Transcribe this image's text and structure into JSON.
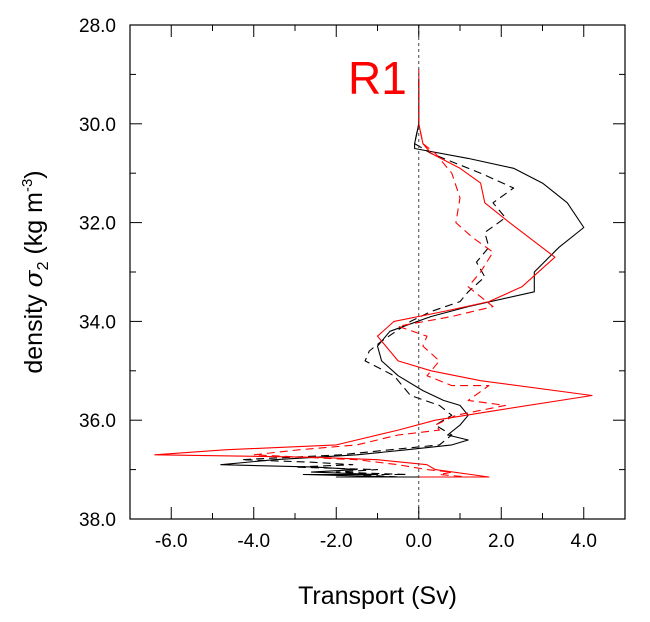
{
  "chart_data": {
    "type": "line",
    "title": "",
    "annotation": "R1",
    "xlabel": "Transport (Sv)",
    "ylabel_prefix": "density ",
    "ylabel_symbol": "σ",
    "ylabel_subscript": "2",
    "ylabel_units_pre": " (kg m",
    "ylabel_units_sup": "-3",
    "ylabel_units_post": ")",
    "xlim": [
      -7.0,
      5.0
    ],
    "ylim": [
      38.0,
      28.0
    ],
    "y_inverted": true,
    "grid": false,
    "zero_line": {
      "x": 0.0,
      "style": "dashed"
    },
    "x_ticks": [
      -6.0,
      -4.0,
      -2.0,
      0.0,
      2.0,
      4.0
    ],
    "x_tick_labels": [
      "-6.0",
      "-4.0",
      "-2.0",
      "0.0",
      "2.0",
      "4.0"
    ],
    "y_ticks": [
      28.0,
      30.0,
      32.0,
      34.0,
      36.0,
      38.0
    ],
    "y_tick_labels": [
      "28.0",
      "30.0",
      "32.0",
      "34.0",
      "36.0",
      "38.0"
    ],
    "series": [
      {
        "color": "#000000",
        "dash": "solid",
        "points": [
          [
            0.0,
            29.1
          ],
          [
            0.0,
            30.0
          ],
          [
            -0.1,
            30.4
          ],
          [
            -0.1,
            30.5
          ],
          [
            1.2,
            30.7
          ],
          [
            2.3,
            30.9
          ],
          [
            3.0,
            31.2
          ],
          [
            3.6,
            31.6
          ],
          [
            4.0,
            32.1
          ],
          [
            3.4,
            32.5
          ],
          [
            2.8,
            33.0
          ],
          [
            2.8,
            33.4
          ],
          [
            1.2,
            33.7
          ],
          [
            0.3,
            33.9
          ],
          [
            -0.7,
            34.2
          ],
          [
            -1.0,
            34.5
          ],
          [
            -0.9,
            34.8
          ],
          [
            -0.5,
            35.1
          ],
          [
            0.1,
            35.4
          ],
          [
            0.6,
            35.6
          ],
          [
            1.0,
            35.7
          ],
          [
            1.2,
            35.9
          ],
          [
            1.0,
            36.1
          ],
          [
            0.7,
            36.3
          ],
          [
            1.2,
            36.4
          ],
          [
            0.8,
            36.5
          ],
          [
            -0.3,
            36.6
          ],
          [
            -1.5,
            36.7
          ],
          [
            -3.5,
            36.8
          ],
          [
            -4.8,
            36.9
          ],
          [
            -2.5,
            36.95
          ],
          [
            -1.5,
            37.0
          ],
          [
            -2.6,
            37.05
          ],
          [
            -1.0,
            37.1
          ],
          [
            -2.8,
            37.1
          ],
          [
            -0.5,
            37.15
          ],
          [
            -2.0,
            37.15
          ],
          [
            0.0,
            37.15
          ]
        ]
      },
      {
        "color": "#000000",
        "dash": "dashed",
        "points": [
          [
            0.0,
            29.1
          ],
          [
            0.0,
            30.0
          ],
          [
            -0.1,
            30.4
          ],
          [
            0.3,
            30.6
          ],
          [
            1.5,
            31.0
          ],
          [
            2.3,
            31.3
          ],
          [
            1.8,
            31.6
          ],
          [
            2.1,
            31.9
          ],
          [
            1.6,
            32.2
          ],
          [
            1.7,
            32.5
          ],
          [
            1.4,
            32.8
          ],
          [
            1.6,
            33.1
          ],
          [
            1.2,
            33.4
          ],
          [
            1.0,
            33.6
          ],
          [
            0.3,
            33.8
          ],
          [
            -0.2,
            34.0
          ],
          [
            -0.9,
            34.4
          ],
          [
            -1.2,
            34.6
          ],
          [
            -1.3,
            34.8
          ],
          [
            -0.6,
            35.1
          ],
          [
            -0.2,
            35.5
          ],
          [
            0.5,
            35.7
          ],
          [
            0.8,
            35.9
          ],
          [
            0.4,
            36.1
          ],
          [
            0.8,
            36.3
          ],
          [
            0.5,
            36.5
          ],
          [
            -0.7,
            36.6
          ],
          [
            -1.9,
            36.7
          ],
          [
            -4.3,
            36.8
          ],
          [
            -2.6,
            36.85
          ],
          [
            -1.6,
            36.9
          ],
          [
            -3.0,
            36.95
          ],
          [
            -1.0,
            37.0
          ],
          [
            -2.0,
            37.05
          ],
          [
            -0.3,
            37.1
          ],
          [
            -1.5,
            37.1
          ],
          [
            -0.5,
            37.15
          ]
        ]
      },
      {
        "color": "#ff0000",
        "dash": "solid",
        "points": [
          [
            0.0,
            28.9
          ],
          [
            0.0,
            30.0
          ],
          [
            0.1,
            30.4
          ],
          [
            0.3,
            30.6
          ],
          [
            1.0,
            30.9
          ],
          [
            1.5,
            31.2
          ],
          [
            1.6,
            31.6
          ],
          [
            2.2,
            32.0
          ],
          [
            3.3,
            32.7
          ],
          [
            2.5,
            33.3
          ],
          [
            1.7,
            33.6
          ],
          [
            0.6,
            33.8
          ],
          [
            -0.6,
            34.0
          ],
          [
            -1.0,
            34.3
          ],
          [
            -0.5,
            34.8
          ],
          [
            0.3,
            35.0
          ],
          [
            1.5,
            35.2
          ],
          [
            4.2,
            35.5
          ],
          [
            1.9,
            35.8
          ],
          [
            0.4,
            36.0
          ],
          [
            -0.5,
            36.2
          ],
          [
            -2.0,
            36.5
          ],
          [
            -4.7,
            36.6
          ],
          [
            -6.4,
            36.7
          ],
          [
            -2.5,
            36.75
          ],
          [
            -1.0,
            36.8
          ],
          [
            0.2,
            36.9
          ],
          [
            0.4,
            37.0
          ],
          [
            1.7,
            37.15
          ],
          [
            0.0,
            37.15
          ]
        ]
      },
      {
        "color": "#ff0000",
        "dash": "dashed",
        "points": [
          [
            0.0,
            29.1
          ],
          [
            0.0,
            30.0
          ],
          [
            0.1,
            30.4
          ],
          [
            0.4,
            30.6
          ],
          [
            0.8,
            31.0
          ],
          [
            1.0,
            31.5
          ],
          [
            0.9,
            32.0
          ],
          [
            1.3,
            32.3
          ],
          [
            1.8,
            32.6
          ],
          [
            1.5,
            33.0
          ],
          [
            1.2,
            33.3
          ],
          [
            1.8,
            33.7
          ],
          [
            0.8,
            33.9
          ],
          [
            -0.5,
            34.1
          ],
          [
            0.2,
            34.3
          ],
          [
            0.1,
            34.5
          ],
          [
            0.5,
            34.8
          ],
          [
            0.2,
            35.1
          ],
          [
            0.8,
            35.3
          ],
          [
            1.7,
            35.3
          ],
          [
            1.2,
            35.6
          ],
          [
            2.1,
            35.7
          ],
          [
            0.9,
            35.9
          ],
          [
            0.4,
            36.1
          ],
          [
            0.5,
            36.2
          ],
          [
            -0.5,
            36.3
          ],
          [
            -1.5,
            36.5
          ],
          [
            -2.9,
            36.6
          ],
          [
            -4.0,
            36.7
          ],
          [
            -2.8,
            36.75
          ],
          [
            -1.5,
            36.8
          ],
          [
            -0.5,
            36.9
          ],
          [
            0.2,
            37.0
          ],
          [
            0.8,
            37.05
          ],
          [
            0.5,
            37.1
          ],
          [
            1.2,
            37.15
          ]
        ]
      }
    ]
  }
}
